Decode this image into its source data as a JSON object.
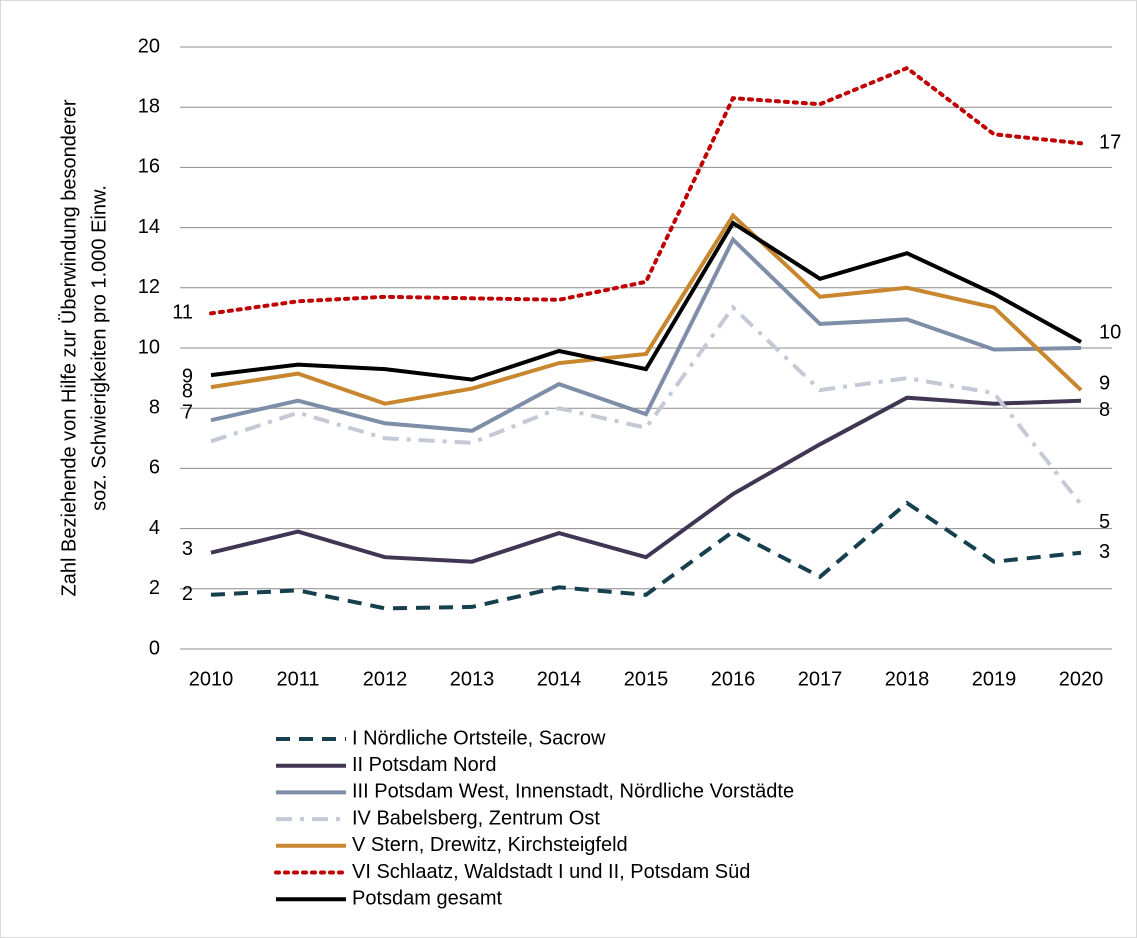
{
  "chart_data": {
    "type": "line",
    "y_label": [
      "Zahl Beziehende von Hilfe zur Überwindung besonderer",
      "soz. Schwierigkeiten pro 1.000 Einw."
    ],
    "categories": [
      "2010",
      "2011",
      "2012",
      "2013",
      "2014",
      "2015",
      "2016",
      "2017",
      "2018",
      "2019",
      "2020"
    ],
    "ylim": [
      0,
      20
    ],
    "yticks": [
      0,
      2,
      4,
      6,
      8,
      10,
      12,
      14,
      16,
      18,
      20
    ],
    "grid": true,
    "legend": "bottom",
    "series": [
      {
        "name": "I Nördliche Ortsteile, Sacrow",
        "color": "#17404f",
        "dash": "dashed",
        "values": [
          1.8,
          1.95,
          1.35,
          1.4,
          2.05,
          1.8,
          3.9,
          2.4,
          4.85,
          2.9,
          3.2
        ],
        "value_labels": [
          "2",
          null,
          null,
          null,
          null,
          null,
          null,
          null,
          null,
          null,
          "3"
        ]
      },
      {
        "name": "II Potsdam Nord",
        "color": "#403552",
        "dash": "solid",
        "values": [
          3.2,
          3.9,
          3.05,
          2.9,
          3.85,
          3.05,
          5.15,
          6.8,
          8.35,
          8.15,
          8.25
        ],
        "value_labels": [
          "3",
          null,
          null,
          null,
          null,
          null,
          null,
          null,
          null,
          null,
          "8"
        ]
      },
      {
        "name": "III Potsdam West, Innenstadt, Nördliche Vorstädte",
        "color": "#7e8ea8",
        "dash": "solid",
        "values": [
          7.6,
          8.25,
          7.5,
          7.25,
          8.8,
          7.8,
          13.6,
          10.8,
          10.95,
          9.95,
          10.0
        ],
        "value_labels": [
          "8",
          null,
          null,
          null,
          null,
          null,
          null,
          null,
          null,
          null,
          "10"
        ]
      },
      {
        "name": "IV Babelsberg, Zentrum Ost",
        "color": "#c5c9d6",
        "dash": "dashdot",
        "values": [
          6.9,
          7.85,
          7.0,
          6.85,
          8.0,
          7.35,
          11.35,
          8.6,
          9.0,
          8.5,
          4.8
        ],
        "value_labels": [
          "7",
          null,
          null,
          null,
          null,
          null,
          null,
          null,
          null,
          null,
          "5"
        ]
      },
      {
        "name": "V Stern, Drewitz, Kirchsteigfeld",
        "color": "#c8862f",
        "dash": "solid",
        "values": [
          8.7,
          9.15,
          8.15,
          8.65,
          9.5,
          9.8,
          14.4,
          11.7,
          12.0,
          11.35,
          8.6
        ],
        "value_labels": [
          "9",
          null,
          null,
          null,
          null,
          null,
          null,
          null,
          null,
          null,
          "9"
        ]
      },
      {
        "name": "VI Schlaatz, Waldstadt I und II, Potsdam Süd",
        "color": "#c00000",
        "dash": "dotted",
        "values": [
          11.15,
          11.55,
          11.7,
          11.65,
          11.6,
          12.2,
          18.3,
          18.1,
          19.3,
          17.1,
          16.8
        ],
        "value_labels": [
          "11",
          null,
          null,
          null,
          null,
          null,
          null,
          null,
          null,
          null,
          "17"
        ]
      },
      {
        "name": "Potsdam gesamt",
        "color": "#000000",
        "dash": "solid",
        "values": [
          9.1,
          9.45,
          9.3,
          8.95,
          9.9,
          9.3,
          14.15,
          12.3,
          13.15,
          11.8,
          10.2
        ]
      }
    ]
  }
}
